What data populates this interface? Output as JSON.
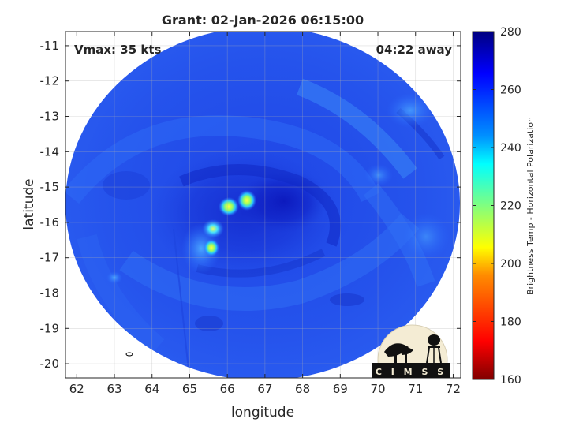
{
  "figure": {
    "title": "Grant: 02-Jan-2026 06:15:00",
    "vmax": "Vmax: 35 kts",
    "time_away": "04:22 away",
    "xlabel": "longitude",
    "ylabel": "latitude",
    "colorbar_label": "Brightness Temp - Horizontal Polarization",
    "logo_text": "CIMSS"
  },
  "chart_data": {
    "type": "heatmap",
    "title": "Grant: 02-Jan-2026 06:15:00",
    "xlabel": "longitude",
    "ylabel": "latitude",
    "xlim": [
      61.7,
      72.2
    ],
    "ylim": [
      -20.4,
      -10.6
    ],
    "xticks": [
      62,
      63,
      64,
      65,
      66,
      67,
      68,
      69,
      70,
      71,
      72
    ],
    "yticks": [
      -11,
      -12,
      -13,
      -14,
      -15,
      -16,
      -17,
      -18,
      -19,
      -20
    ],
    "grid": true,
    "colorbar": {
      "label": "Brightness Temp - Horizontal Polarization",
      "range": [
        160,
        280
      ],
      "ticks": [
        160,
        180,
        200,
        220,
        240,
        260,
        280
      ],
      "colormap": "jet"
    },
    "annotations": [
      "Vmax: 35 kts",
      "04:22 away"
    ],
    "swath": {
      "center": [
        66.85,
        -15.95
      ]
    },
    "warm_spots": [
      {
        "lon": 66.05,
        "lat": -15.45,
        "tb": 205
      },
      {
        "lon": 66.5,
        "lat": -15.3,
        "tb": 205
      },
      {
        "lon": 65.6,
        "lat": -16.65,
        "tb": 215
      },
      {
        "lon": 65.5,
        "lat": -16.3,
        "tb": 232
      },
      {
        "lon": 63.0,
        "lat": -17.5,
        "tb": 240
      }
    ],
    "cold_core": {
      "lon": 67.1,
      "lat": -15.5,
      "tb": 275
    },
    "colors": {
      "background_tb": 262,
      "swath_edge": "#1a3cd8"
    }
  }
}
